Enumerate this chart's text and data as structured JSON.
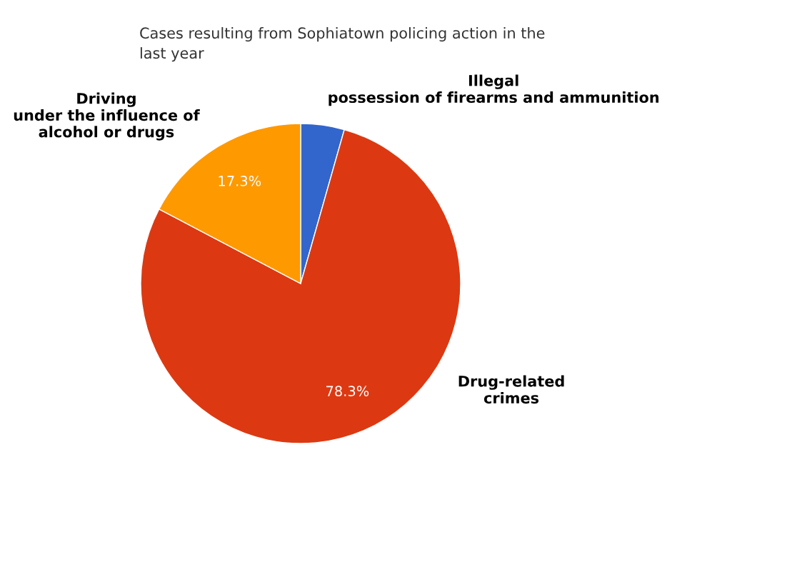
{
  "chart_data": {
    "type": "pie",
    "title": "Cases resulting from Sophiatown policing action in the\nlast year",
    "categories": [
      "Illegal\npossession of firearms and ammunition",
      "Drug-related\ncrimes",
      "Driving\nunder the influence of\nalcohol or drugs"
    ],
    "values": [
      4.4,
      78.3,
      17.3
    ],
    "colors": [
      "#3366cc",
      "#dc3912",
      "#ff9900"
    ],
    "value_labels": [
      null,
      "78.3%",
      "17.3%"
    ],
    "legend": false
  }
}
